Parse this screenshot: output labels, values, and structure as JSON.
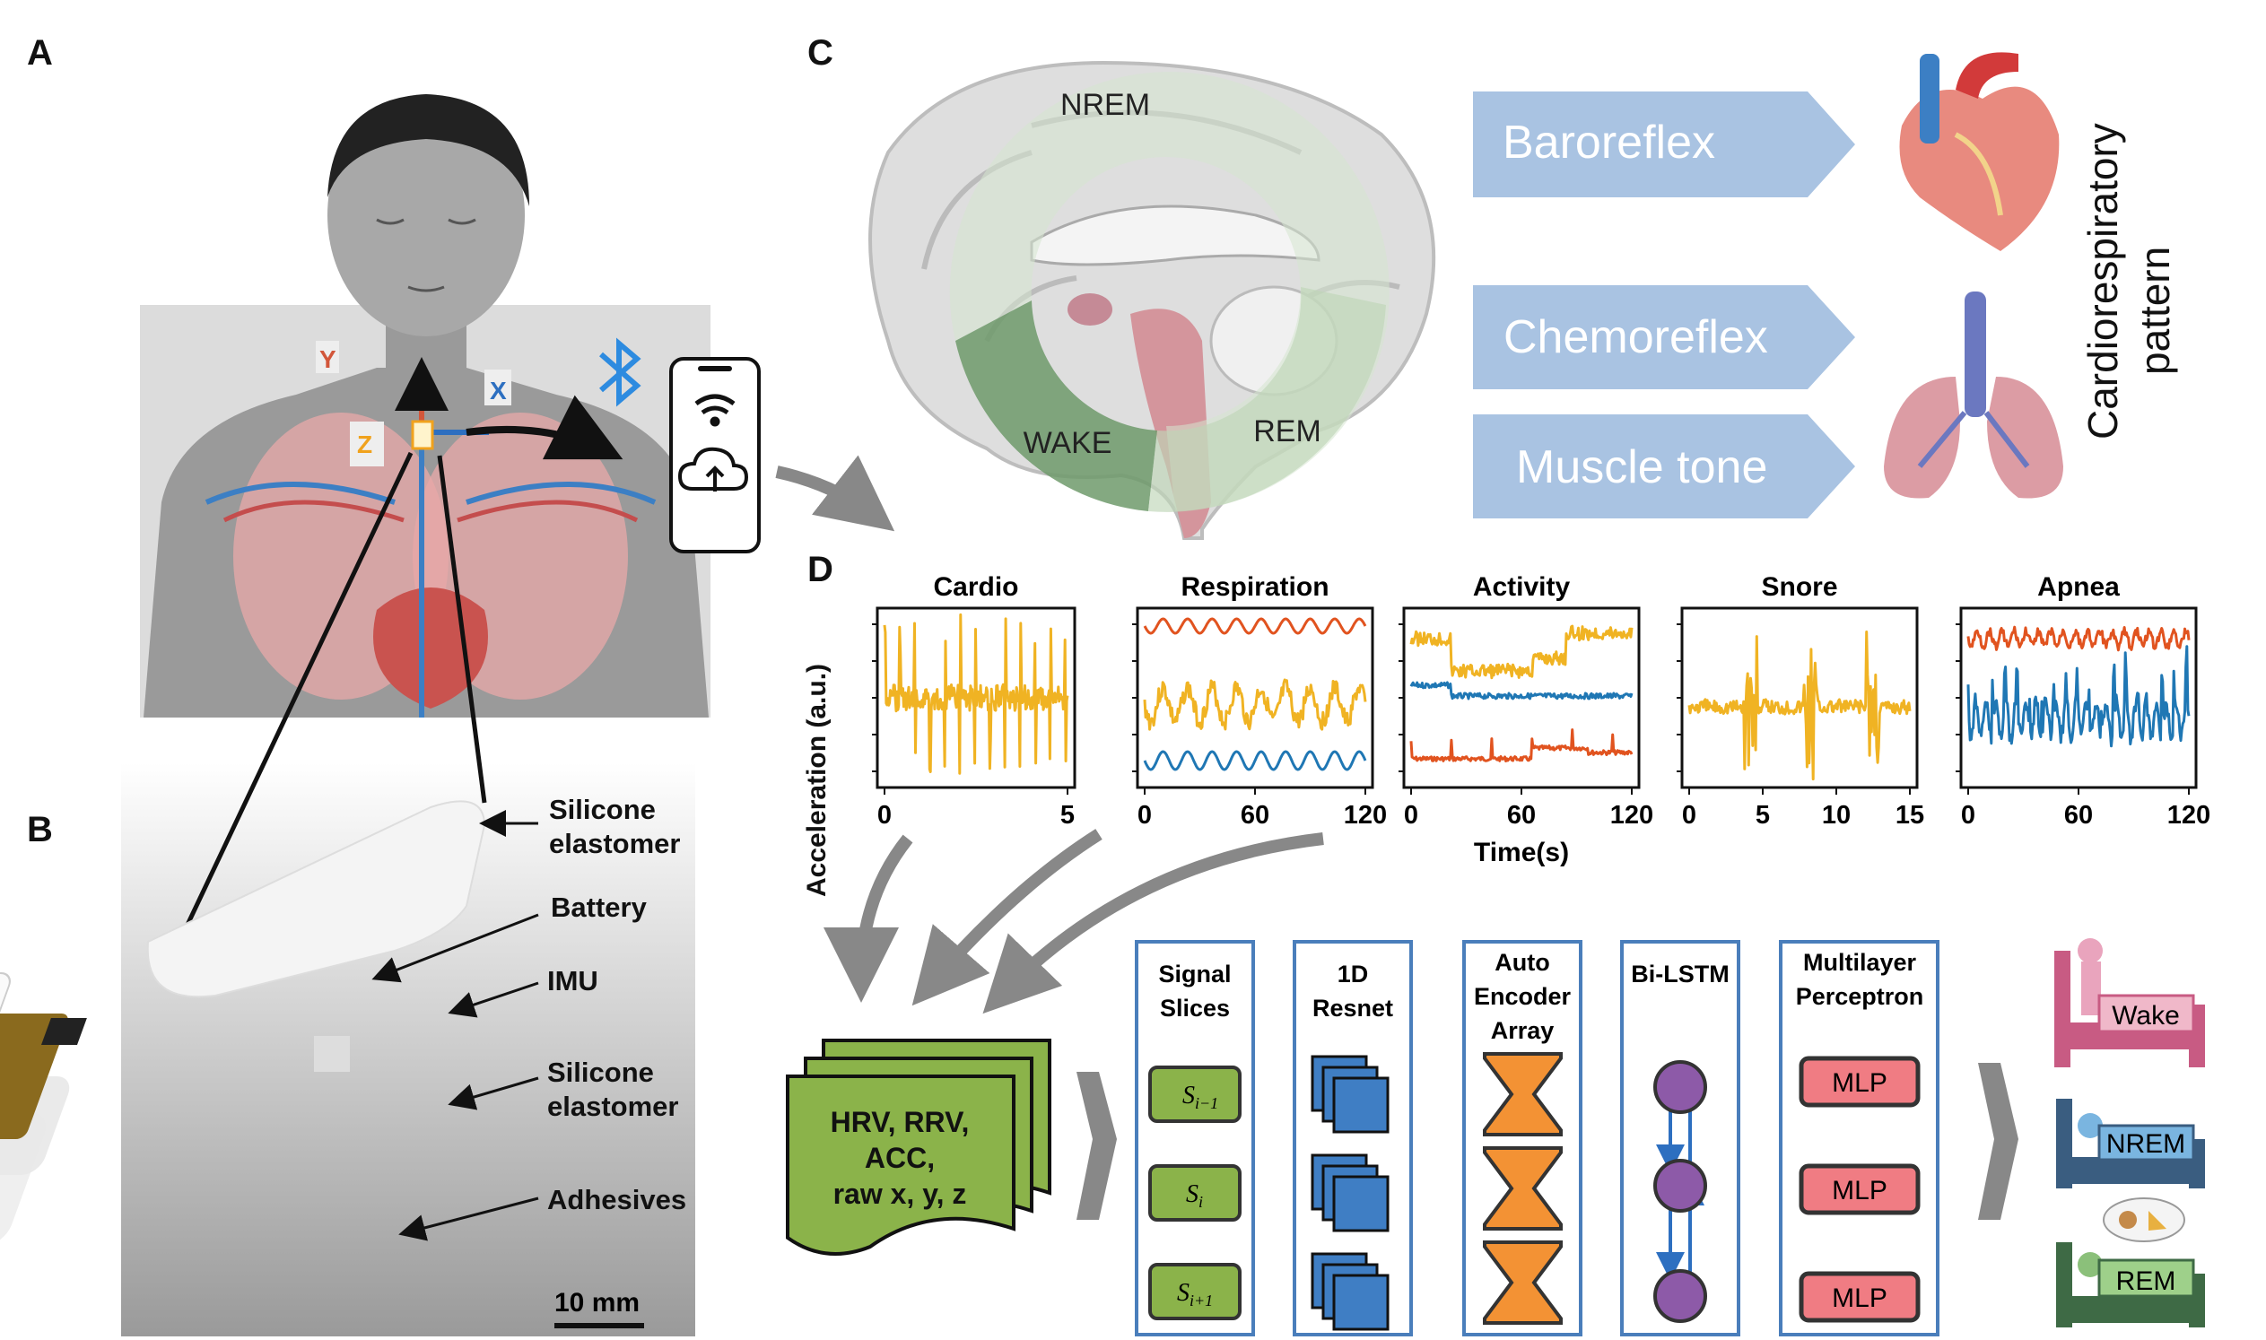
{
  "panels": {
    "a": "A",
    "b": "B",
    "c": "C",
    "d": "D"
  },
  "axis_labels": {
    "x": "X",
    "y": "Y",
    "z": "Z"
  },
  "device_parts": [
    "Silicone elastomer",
    "Battery",
    "IMU",
    "Silicone elastomer",
    "Adhesives"
  ],
  "device_part_lines": [
    [
      "Silicone",
      "elastomer"
    ],
    [
      "Battery"
    ],
    [
      "IMU"
    ],
    [
      "Silicone",
      "elastomer"
    ],
    [
      "Adhesives"
    ]
  ],
  "scale_bar": "10 mm",
  "sleep_stages": {
    "nrem": "NREM",
    "wake": "WAKE",
    "rem": "REM"
  },
  "reflexes": [
    "Baroreflex",
    "Chemoreflex",
    "Muscle tone"
  ],
  "cardio_label": [
    "Cardiorespiratory",
    "pattern"
  ],
  "chart_data": [
    {
      "type": "line",
      "title": "Cardio",
      "xticks": [
        "0",
        "5"
      ],
      "ylabel": "Acceleration (a.u.)",
      "series": [
        {
          "color": "#f0b323"
        }
      ]
    },
    {
      "type": "line",
      "title": "Respiration",
      "xticks": [
        "0",
        "60",
        "120"
      ],
      "series": [
        {
          "color": "#e1531f"
        },
        {
          "color": "#f0b323"
        },
        {
          "color": "#1f77b4"
        }
      ]
    },
    {
      "type": "line",
      "title": "Activity",
      "xticks": [
        "0",
        "60",
        "120"
      ],
      "xlabel": "Time(s)",
      "series": [
        {
          "color": "#f0b323"
        },
        {
          "color": "#1f77b4"
        },
        {
          "color": "#e1531f"
        }
      ]
    },
    {
      "type": "line",
      "title": "Snore",
      "xticks": [
        "0",
        "5",
        "10",
        "15"
      ],
      "series": [
        {
          "color": "#f0b323"
        }
      ]
    },
    {
      "type": "line",
      "title": "Apnea",
      "xticks": [
        "0",
        "60",
        "120"
      ],
      "series": [
        {
          "color": "#e1531f"
        },
        {
          "color": "#1f77b4"
        }
      ]
    }
  ],
  "features": [
    "HRV, RRV,",
    "ACC,",
    "raw x, y, z"
  ],
  "pipeline": {
    "slices_title": [
      "Signal",
      "Slices"
    ],
    "slices": [
      "S",
      "S",
      "S"
    ],
    "slice_subs": [
      "i−1",
      "i",
      "i+1"
    ],
    "resnet_title": [
      "1D",
      "Resnet"
    ],
    "ae_title": [
      "Auto",
      "Encoder",
      "Array"
    ],
    "lstm_title": "Bi-LSTM",
    "mlp_title": [
      "Multilayer",
      "Perceptron"
    ],
    "mlp": [
      "MLP",
      "MLP",
      "MLP"
    ]
  },
  "outputs": [
    "Wake",
    "NREM",
    "REM"
  ],
  "colors": {
    "accent_blue": "#4a7ebb",
    "box_green": "#8bb34a",
    "mlp_red": "#f07c83",
    "ae_orange": "#f39234",
    "lstm_purple": "#8d5aa8",
    "arrow_grey": "#888888"
  }
}
